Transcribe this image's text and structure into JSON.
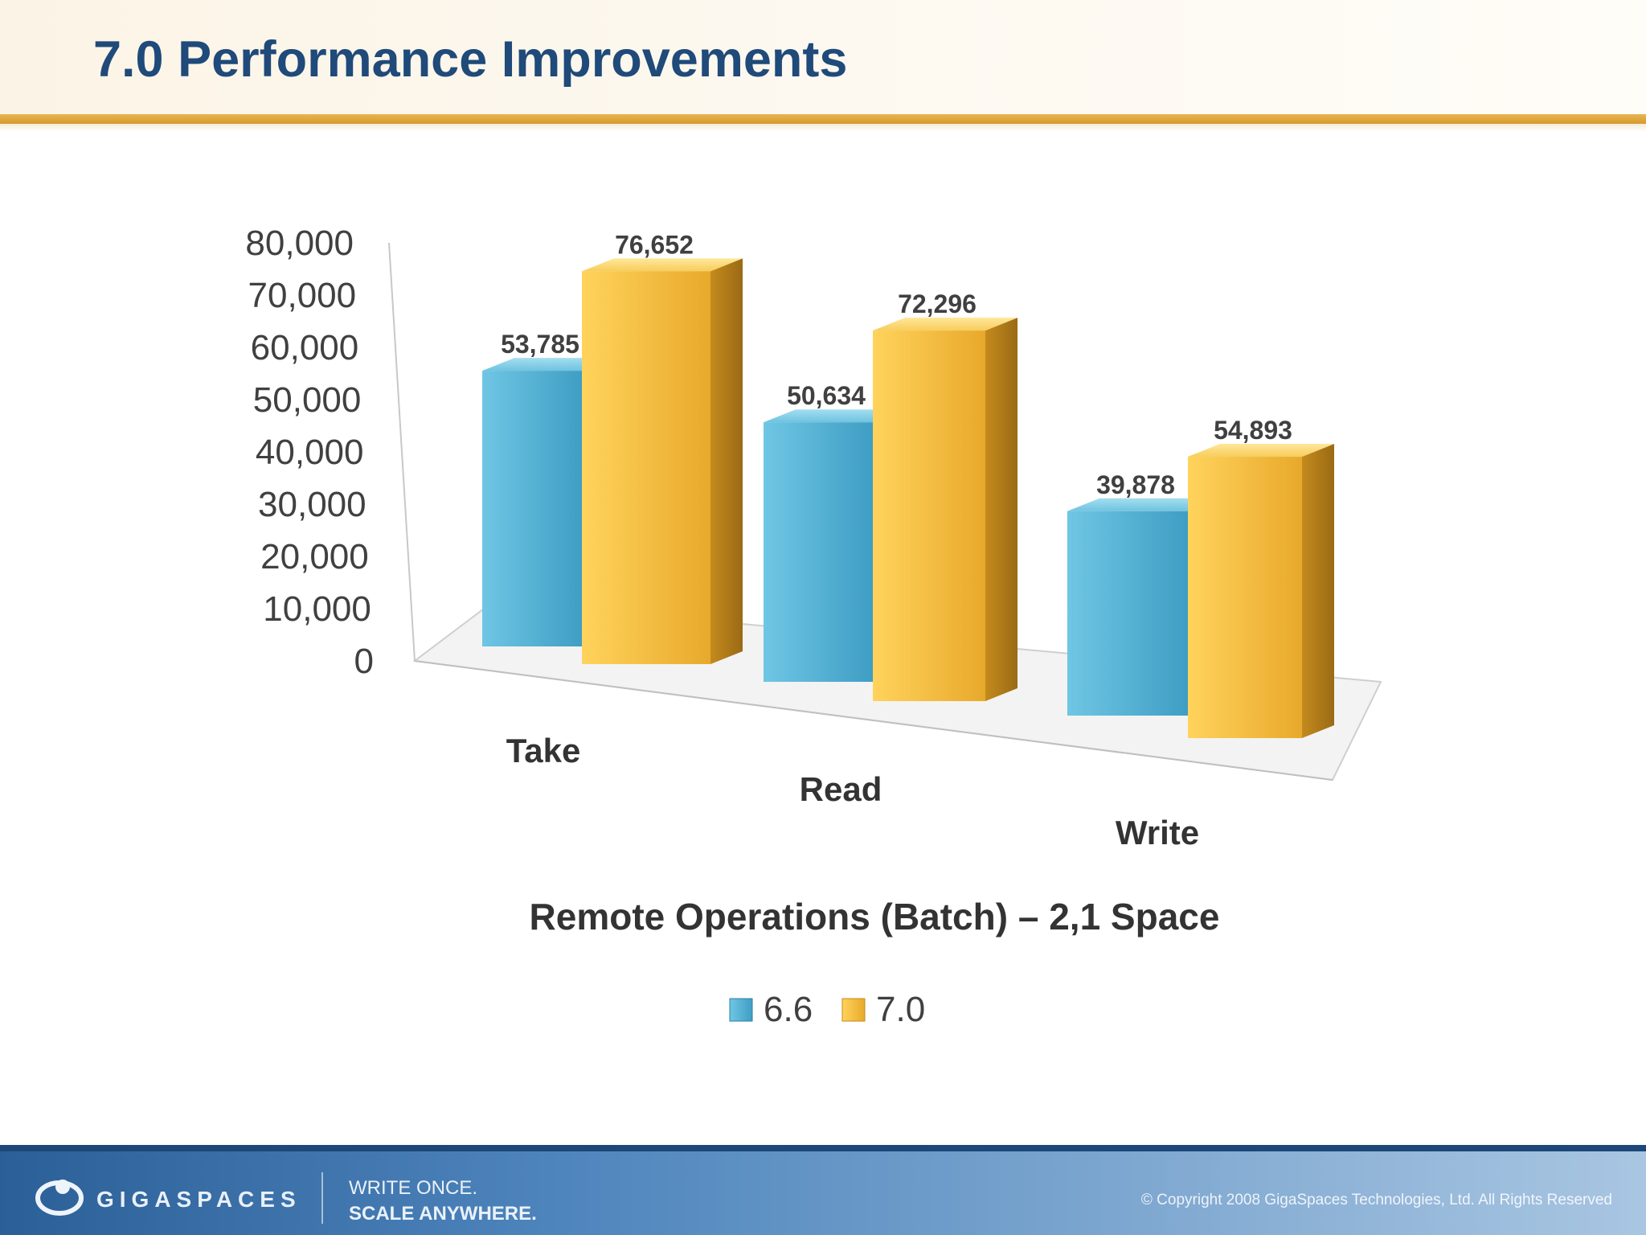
{
  "slide": {
    "title": "7.0 Performance Improvements"
  },
  "chart_data": {
    "type": "bar",
    "title": "Remote Operations (Batch) – 2,1 Space",
    "xlabel": "",
    "ylabel": "",
    "categories": [
      "Take",
      "Read",
      "Write"
    ],
    "series": [
      {
        "name": "6.6",
        "values": [
          53785,
          50634,
          39878
        ],
        "color": "#5bb5d5",
        "labels": [
          "53,785",
          "50,634",
          "39,878"
        ]
      },
      {
        "name": "7.0",
        "values": [
          76652,
          72296,
          54893
        ],
        "color": "#f1bd3f",
        "labels": [
          "76,652",
          "72,296",
          "54,893"
        ]
      }
    ],
    "ylim": [
      0,
      80000
    ],
    "yticks": [
      0,
      10000,
      20000,
      30000,
      40000,
      50000,
      60000,
      70000,
      80000
    ],
    "ytick_labels": [
      "0",
      "10,000",
      "20,000",
      "30,000",
      "40,000",
      "50,000",
      "60,000",
      "70,000",
      "80,000"
    ],
    "style": "3d-clustered",
    "grid": false,
    "legend_position": "bottom"
  },
  "footer": {
    "logo_text": "GIGASPACES",
    "tagline_line1": "WRITE ONCE.",
    "tagline_line2": "SCALE ANYWHERE.",
    "copyright": "© Copyright 2008 GigaSpaces Technologies, Ltd. All Rights Reserved"
  }
}
